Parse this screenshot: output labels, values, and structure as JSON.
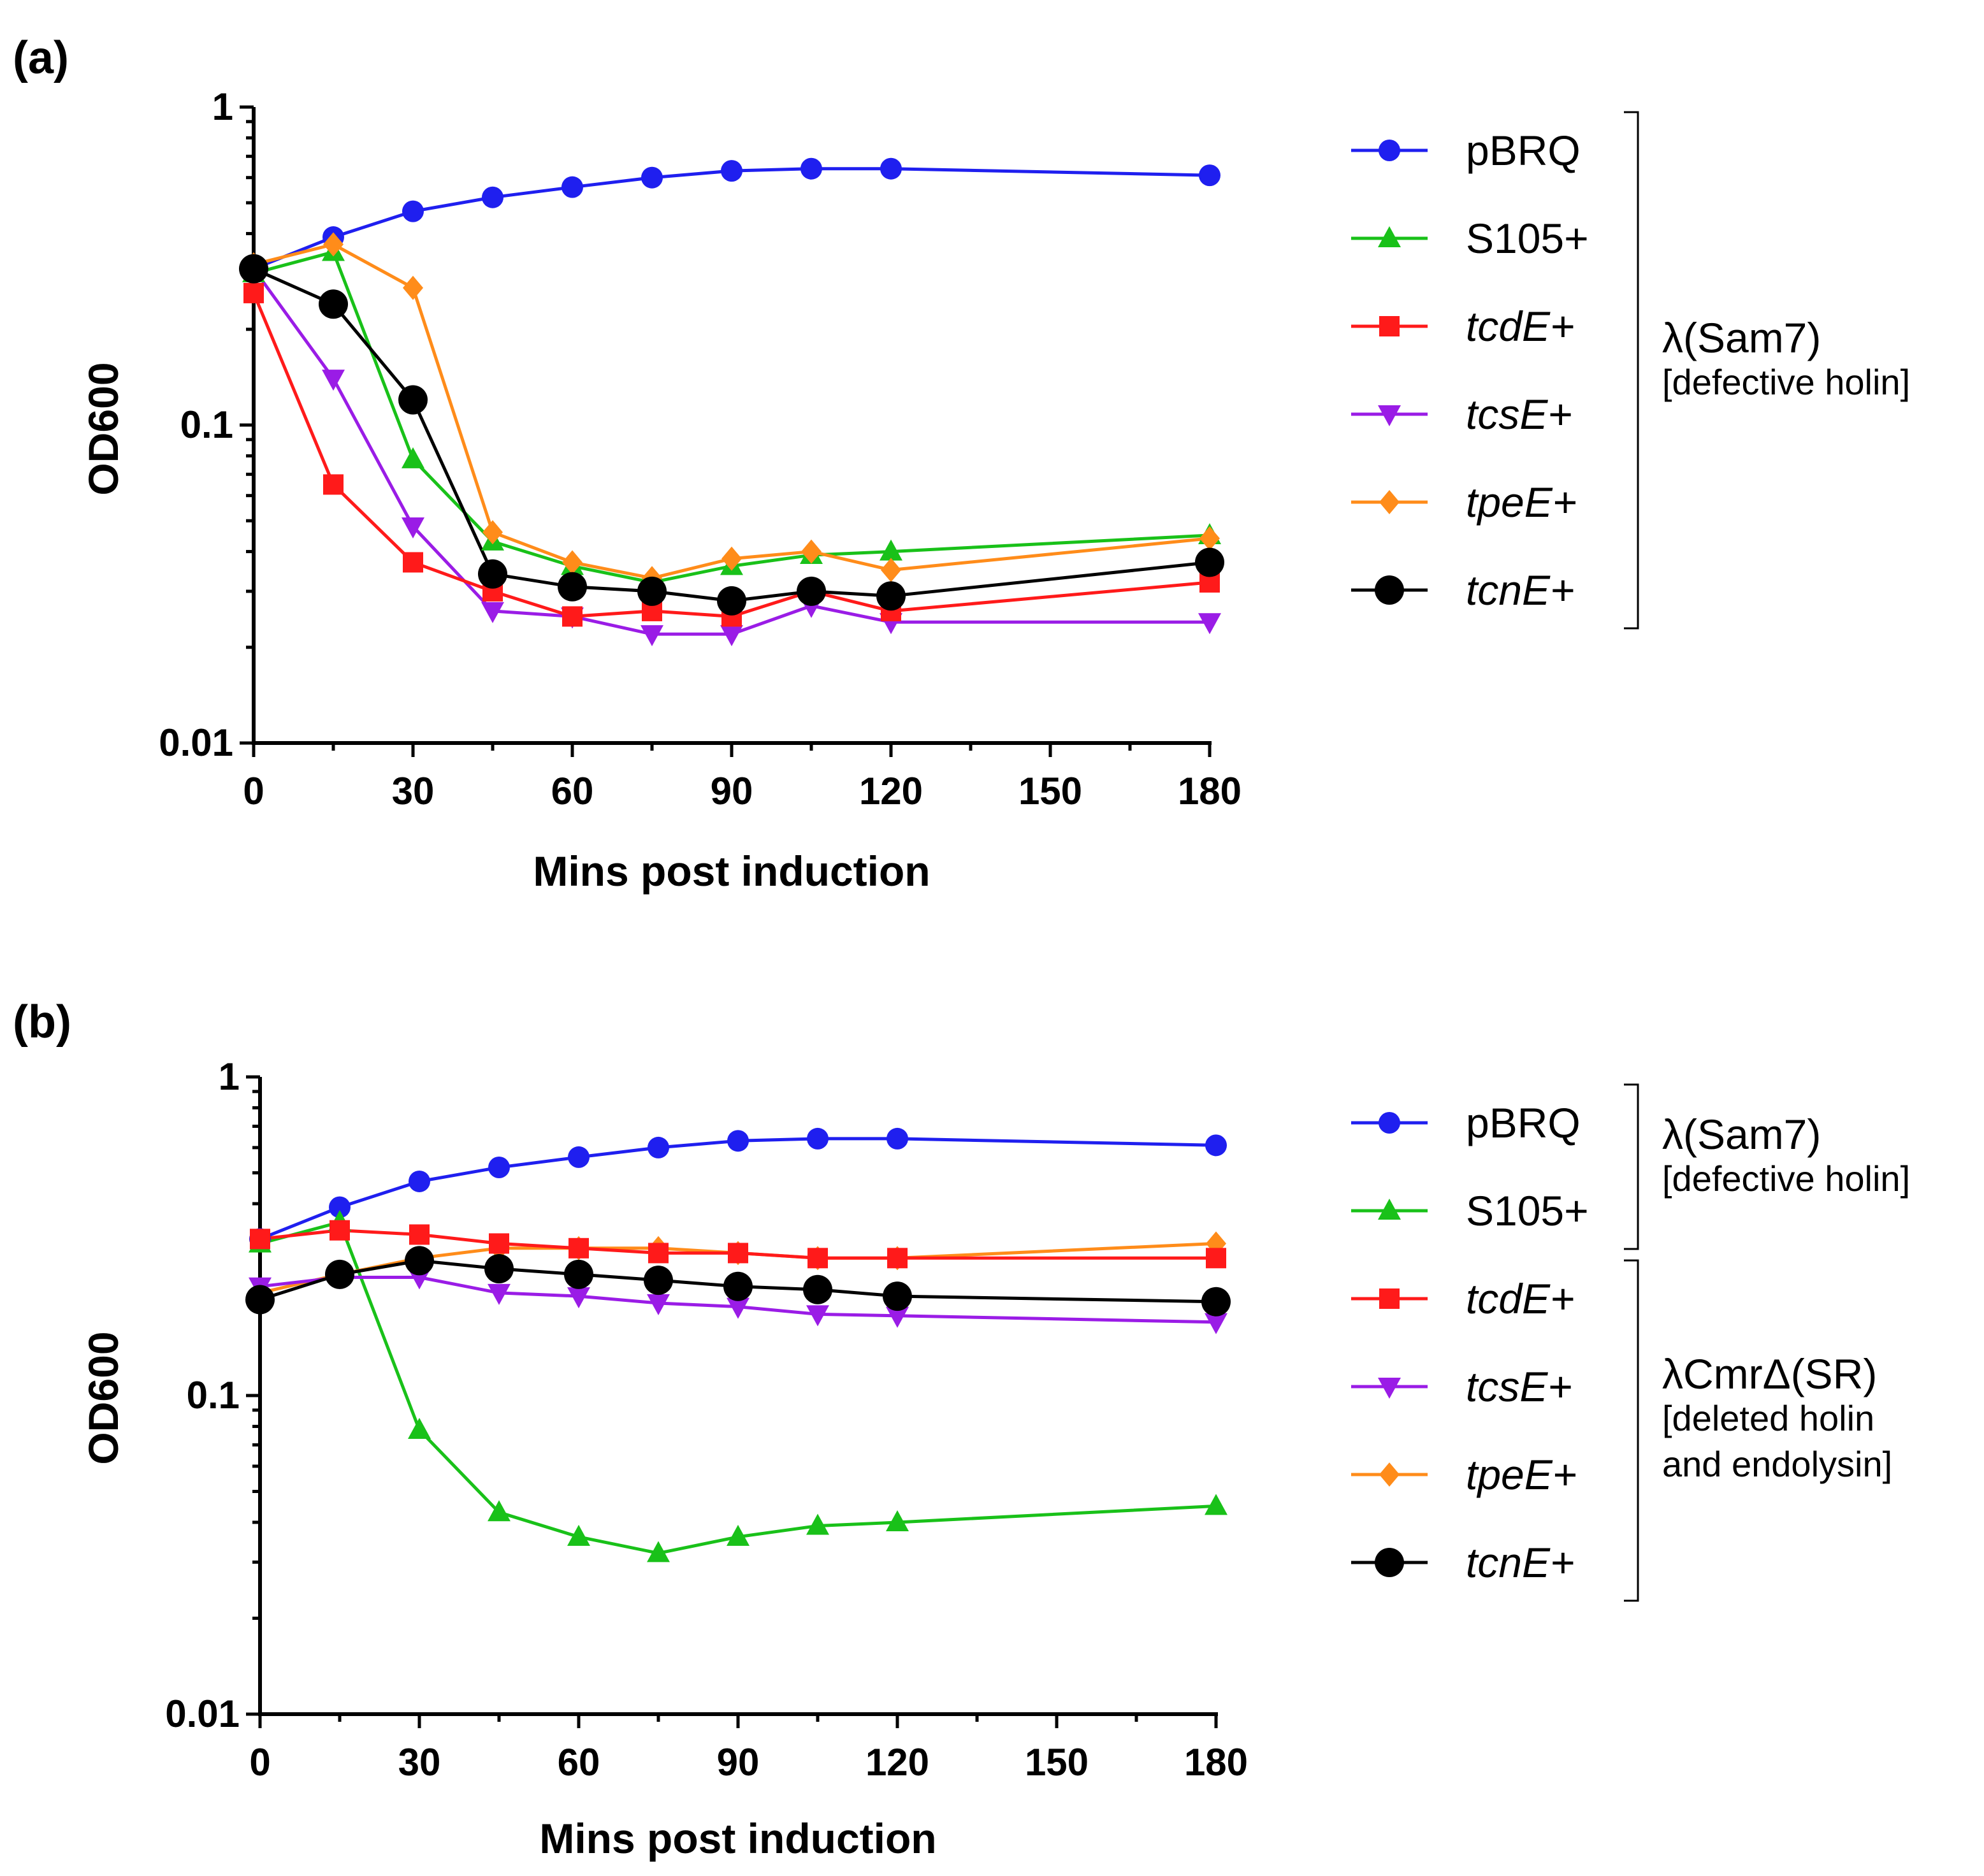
{
  "chart_data": [
    {
      "panel_label": "(a)",
      "type": "line",
      "xlabel": "Mins post induction",
      "ylabel": "OD600",
      "yscale": "log",
      "ylim": [
        0.01,
        1
      ],
      "xlim": [
        0,
        180
      ],
      "x_ticks": [
        "0",
        "30",
        "60",
        "90",
        "120",
        "150",
        "180"
      ],
      "y_ticks": [
        "0.01",
        "0.1",
        "1"
      ],
      "x": [
        0,
        15,
        30,
        45,
        60,
        75,
        90,
        105,
        120,
        180
      ],
      "series": [
        {
          "name": "pBRQ",
          "italic": false,
          "color": "#1f1fef",
          "marker": "circle",
          "values": [
            0.31,
            0.39,
            0.47,
            0.52,
            0.56,
            0.6,
            0.63,
            0.64,
            0.64,
            0.61
          ]
        },
        {
          "name": "S105+",
          "italic": false,
          "color": "#19c119",
          "marker": "triangle-up",
          "values": [
            0.3,
            0.35,
            0.078,
            0.043,
            0.036,
            0.032,
            0.036,
            0.039,
            0.04,
            0.045
          ]
        },
        {
          "name": "tcdE+",
          "italic": true,
          "color": "#ff1a1a",
          "marker": "square",
          "values": [
            0.26,
            0.065,
            0.037,
            0.03,
            0.025,
            0.026,
            0.025,
            0.03,
            0.026,
            0.032
          ]
        },
        {
          "name": "tcsE+",
          "italic": true,
          "color": "#9a1ce6",
          "marker": "triangle-down",
          "values": [
            0.31,
            0.14,
            0.048,
            0.026,
            0.025,
            0.022,
            0.022,
            0.027,
            0.024,
            0.024
          ]
        },
        {
          "name": "tpeE+",
          "italic": true,
          "color": "#ff8c1a",
          "marker": "diamond",
          "values": [
            0.32,
            0.37,
            0.27,
            0.046,
            0.037,
            0.033,
            0.038,
            0.04,
            0.035,
            0.044
          ]
        },
        {
          "name": "tcnE+",
          "italic": true,
          "color": "#000000",
          "marker": "circle-large",
          "values": [
            0.31,
            0.24,
            0.12,
            0.034,
            0.031,
            0.03,
            0.028,
            0.03,
            0.029,
            0.037
          ]
        }
      ],
      "groups": [
        {
          "title": "λ(Sam7)",
          "subtitle": [
            "[defective holin]"
          ],
          "members": [
            0,
            5
          ]
        }
      ]
    },
    {
      "panel_label": "(b)",
      "type": "line",
      "xlabel": "Mins post induction",
      "ylabel": "OD600",
      "yscale": "log",
      "ylim": [
        0.01,
        1
      ],
      "xlim": [
        0,
        180
      ],
      "x_ticks": [
        "0",
        "30",
        "60",
        "90",
        "120",
        "150",
        "180"
      ],
      "y_ticks": [
        "0.01",
        "0.1",
        "1"
      ],
      "x": [
        0,
        15,
        30,
        45,
        60,
        75,
        90,
        105,
        120,
        180
      ],
      "series": [
        {
          "name": "pBRQ",
          "italic": false,
          "color": "#1f1fef",
          "marker": "circle",
          "values": [
            0.31,
            0.39,
            0.47,
            0.52,
            0.56,
            0.6,
            0.63,
            0.64,
            0.64,
            0.61
          ]
        },
        {
          "name": "S105+",
          "italic": false,
          "color": "#19c119",
          "marker": "triangle-up",
          "values": [
            0.3,
            0.35,
            0.078,
            0.043,
            0.036,
            0.032,
            0.036,
            0.039,
            0.04,
            0.045
          ]
        },
        {
          "name": "tcdE+",
          "italic": true,
          "color": "#ff1a1a",
          "marker": "square",
          "values": [
            0.31,
            0.33,
            0.32,
            0.3,
            0.29,
            0.28,
            0.28,
            0.27,
            0.27,
            0.27
          ]
        },
        {
          "name": "tcsE+",
          "italic": true,
          "color": "#9a1ce6",
          "marker": "triangle-down",
          "values": [
            0.22,
            0.235,
            0.235,
            0.21,
            0.205,
            0.195,
            0.19,
            0.18,
            0.178,
            0.17
          ]
        },
        {
          "name": "tpeE+",
          "italic": true,
          "color": "#ff8c1a",
          "marker": "diamond",
          "values": [
            0.21,
            0.24,
            0.27,
            0.29,
            0.29,
            0.29,
            0.28,
            0.27,
            0.27,
            0.3
          ]
        },
        {
          "name": "tcnE+",
          "italic": true,
          "color": "#000000",
          "marker": "circle-large",
          "values": [
            0.2,
            0.24,
            0.265,
            0.25,
            0.24,
            0.23,
            0.22,
            0.215,
            0.205,
            0.197
          ]
        }
      ],
      "groups": [
        {
          "title": "λ(Sam7)",
          "subtitle": [
            "[defective holin]"
          ],
          "members": [
            0,
            1
          ]
        },
        {
          "title": "λCmrΔ(SR)",
          "subtitle": [
            "[deleted holin",
            "and endolysin]"
          ],
          "members": [
            2,
            5
          ]
        }
      ]
    }
  ]
}
